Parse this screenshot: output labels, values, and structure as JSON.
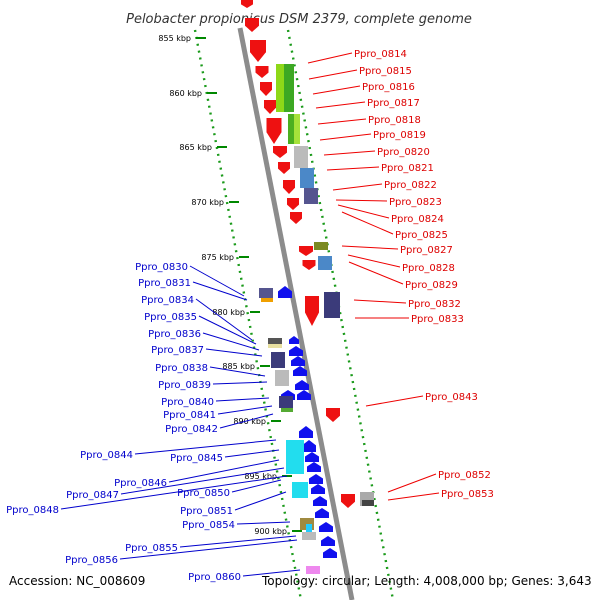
{
  "title": "Pelobacter propionicus DSM 2379, complete genome",
  "accession": "Accession: NC_008609",
  "topology": "Topology: circular; Length: 4,008,000 bp; Genes: 3,643",
  "colors": {
    "forward_label": "#dd0000",
    "reverse_label": "#0000cc",
    "backbone": "#888888",
    "ticks": "#009900"
  },
  "kbp_ticks": [
    "855 kbp",
    "860 kbp",
    "865 kbp",
    "870 kbp",
    "875 kbp",
    "880 kbp",
    "885 kbp",
    "890 kbp",
    "895 kbp",
    "900 kbp"
  ],
  "forward_labels": [
    "Ppro_0814",
    "Ppro_0815",
    "Ppro_0816",
    "Ppro_0817",
    "Ppro_0818",
    "Ppro_0819",
    "Ppro_0820",
    "Ppro_0821",
    "Ppro_0822",
    "Ppro_0823",
    "Ppro_0824",
    "Ppro_0825",
    "Ppro_0827",
    "Ppro_0828",
    "Ppro_0829",
    "Ppro_0832",
    "Ppro_0833",
    "Ppro_0843",
    "Ppro_0852",
    "Ppro_0853"
  ],
  "reverse_labels": [
    "Ppro_0830",
    "Ppro_0831",
    "Ppro_0834",
    "Ppro_0835",
    "Ppro_0836",
    "Ppro_0837",
    "Ppro_0838",
    "Ppro_0839",
    "Ppro_0840",
    "Ppro_0841",
    "Ppro_0842",
    "Ppro_0844",
    "Ppro_0845",
    "Ppro_0846",
    "Ppro_0850",
    "Ppro_0847",
    "Ppro_0851",
    "Ppro_0848",
    "Ppro_0854",
    "Ppro_0855",
    "Ppro_0856",
    "Ppro_0860"
  ]
}
